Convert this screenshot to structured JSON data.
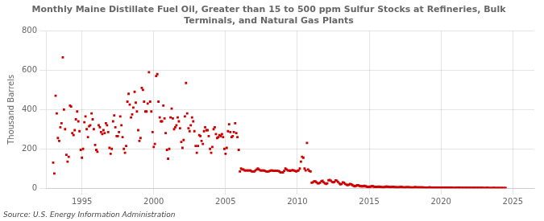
{
  "chart_data": {
    "type": "scatter",
    "title": "Monthly Maine Distillate Fuel Oil, Greater than 15 to 500 ppm Sulfur Stocks at Refineries, Bulk\nTerminals, and Natural Gas Plants",
    "ylabel": "Thousand Barrels",
    "annotations": [
      "Source: U.S. Energy Information Administration"
    ],
    "color": "#cc0000",
    "marker": "square",
    "grid": true,
    "xlim": [
      1992.5,
      2026.5
    ],
    "xticks": [
      1995,
      2000,
      2005,
      2010,
      2015,
      2020,
      2025
    ],
    "ylim": [
      0,
      800
    ],
    "yticks": [
      0,
      200,
      400,
      600,
      800
    ],
    "x": [
      1993.0,
      1993.08,
      1993.17,
      1993.25,
      1993.33,
      1993.42,
      1993.5,
      1993.58,
      1993.67,
      1993.75,
      1993.83,
      1993.92,
      1994.0,
      1994.08,
      1994.17,
      1994.25,
      1994.33,
      1994.42,
      1994.5,
      1994.58,
      1994.67,
      1994.75,
      1994.83,
      1994.92,
      1995.0,
      1995.08,
      1995.17,
      1995.25,
      1995.33,
      1995.42,
      1995.5,
      1995.58,
      1995.67,
      1995.75,
      1995.83,
      1995.92,
      1996.0,
      1996.08,
      1996.17,
      1996.25,
      1996.33,
      1996.42,
      1996.5,
      1996.58,
      1996.67,
      1996.75,
      1996.83,
      1996.92,
      1997.0,
      1997.08,
      1997.17,
      1997.25,
      1997.33,
      1997.42,
      1997.5,
      1997.58,
      1997.67,
      1997.75,
      1997.83,
      1997.92,
      1998.0,
      1998.08,
      1998.17,
      1998.25,
      1998.33,
      1998.42,
      1998.5,
      1998.58,
      1998.67,
      1998.75,
      1998.83,
      1998.92,
      1999.0,
      1999.08,
      1999.17,
      1999.25,
      1999.33,
      1999.42,
      1999.5,
      1999.58,
      1999.67,
      1999.75,
      1999.83,
      1999.92,
      2000.0,
      2000.08,
      2000.17,
      2000.25,
      2000.33,
      2000.42,
      2000.5,
      2000.58,
      2000.67,
      2000.75,
      2000.83,
      2000.92,
      2001.0,
      2001.08,
      2001.17,
      2001.25,
      2001.33,
      2001.42,
      2001.5,
      2001.58,
      2001.67,
      2001.75,
      2001.83,
      2001.92,
      2002.0,
      2002.08,
      2002.17,
      2002.25,
      2002.33,
      2002.42,
      2002.5,
      2002.58,
      2002.67,
      2002.75,
      2002.83,
      2002.92,
      2003.0,
      2003.08,
      2003.17,
      2003.25,
      2003.33,
      2003.42,
      2003.5,
      2003.58,
      2003.67,
      2003.75,
      2003.83,
      2003.92,
      2004.0,
      2004.08,
      2004.17,
      2004.25,
      2004.33,
      2004.42,
      2004.5,
      2004.58,
      2004.67,
      2004.75,
      2004.83,
      2004.92,
      2005.0,
      2005.08,
      2005.17,
      2005.25,
      2005.33,
      2005.42,
      2005.5,
      2005.58,
      2005.67,
      2005.75,
      2005.83,
      2005.92,
      2006.0,
      2006.08,
      2006.17,
      2006.25,
      2006.33,
      2006.42,
      2006.5,
      2006.58,
      2006.67,
      2006.75,
      2006.83,
      2006.92,
      2007.0,
      2007.08,
      2007.17,
      2007.25,
      2007.33,
      2007.42,
      2007.5,
      2007.58,
      2007.67,
      2007.75,
      2007.83,
      2007.92,
      2008.0,
      2008.08,
      2008.17,
      2008.25,
      2008.33,
      2008.42,
      2008.5,
      2008.58,
      2008.67,
      2008.75,
      2008.83,
      2008.92,
      2009.0,
      2009.08,
      2009.17,
      2009.25,
      2009.33,
      2009.42,
      2009.5,
      2009.58,
      2009.67,
      2009.75,
      2009.83,
      2009.92,
      2010.0,
      2010.08,
      2010.17,
      2010.25,
      2010.33,
      2010.42,
      2010.5,
      2010.58,
      2010.67,
      2010.75,
      2010.83,
      2010.92,
      2011.0,
      2011.08,
      2011.17,
      2011.25,
      2011.33,
      2011.42,
      2011.5,
      2011.58,
      2011.67,
      2011.75,
      2011.83,
      2011.92,
      2012.0,
      2012.08,
      2012.17,
      2012.25,
      2012.33,
      2012.42,
      2012.5,
      2012.58,
      2012.67,
      2012.75,
      2012.83,
      2012.92,
      2013.0,
      2013.08,
      2013.17,
      2013.25,
      2013.33,
      2013.42,
      2013.5,
      2013.58,
      2013.67,
      2013.75,
      2013.83,
      2013.92,
      2014.0,
      2014.08,
      2014.17,
      2014.25,
      2014.33,
      2014.42,
      2014.5,
      2014.58,
      2014.67,
      2014.75,
      2014.83,
      2014.92,
      2015.0,
      2015.08,
      2015.17,
      2015.25,
      2015.33,
      2015.42,
      2015.5,
      2015.58,
      2015.67,
      2015.75,
      2015.83,
      2015.92,
      2016.0,
      2016.08,
      2016.17,
      2016.25,
      2016.33,
      2016.42,
      2016.5,
      2016.58,
      2016.67,
      2016.75,
      2016.83,
      2016.92,
      2017.0,
      2017.08,
      2017.17,
      2017.25,
      2017.33,
      2017.42,
      2017.5,
      2017.58,
      2017.67,
      2017.75,
      2017.83,
      2017.92,
      2018.0,
      2018.08,
      2018.17,
      2018.25,
      2018.33,
      2018.42,
      2018.5,
      2018.58,
      2018.67,
      2018.75,
      2018.83,
      2018.92,
      2019.0,
      2019.08,
      2019.17,
      2019.25,
      2019.33,
      2019.42,
      2019.5,
      2019.58,
      2019.67,
      2019.75,
      2019.83,
      2019.92,
      2020.0,
      2020.08,
      2020.17,
      2020.25,
      2020.33,
      2020.42,
      2020.5,
      2020.58,
      2020.67,
      2020.75,
      2020.83,
      2020.92,
      2021.0,
      2021.08,
      2021.17,
      2021.25,
      2021.33,
      2021.42,
      2021.5,
      2021.58,
      2021.67,
      2021.75,
      2021.83,
      2021.92,
      2022.0,
      2022.08,
      2022.17,
      2022.25,
      2022.33,
      2022.42,
      2022.5,
      2022.58,
      2022.67,
      2022.75,
      2022.83,
      2022.92,
      2023.0,
      2023.08,
      2023.17,
      2023.25,
      2023.33,
      2023.42,
      2023.5,
      2023.58,
      2023.67,
      2023.75,
      2023.83,
      2023.92,
      2024.0,
      2024.08,
      2024.17,
      2024.25,
      2024.33,
      2024.42,
      2024.5
    ],
    "values": [
      130,
      75,
      470,
      380,
      255,
      240,
      310,
      330,
      665,
      400,
      300,
      170,
      135,
      160,
      420,
      415,
      280,
      270,
      295,
      350,
      390,
      340,
      290,
      195,
      155,
      200,
      335,
      365,
      300,
      260,
      315,
      320,
      380,
      350,
      300,
      220,
      195,
      185,
      320,
      310,
      285,
      275,
      295,
      280,
      330,
      320,
      285,
      205,
      175,
      200,
      340,
      370,
      310,
      265,
      265,
      285,
      365,
      320,
      260,
      200,
      180,
      215,
      440,
      480,
      425,
      360,
      375,
      410,
      490,
      435,
      390,
      295,
      240,
      255,
      510,
      500,
      440,
      390,
      390,
      430,
      590,
      440,
      390,
      285,
      210,
      225,
      570,
      580,
      440,
      360,
      340,
      340,
      420,
      355,
      280,
      195,
      150,
      200,
      360,
      405,
      355,
      300,
      310,
      320,
      360,
      340,
      305,
      235,
      205,
      245,
      365,
      535,
      380,
      305,
      290,
      320,
      360,
      340,
      290,
      215,
      180,
      215,
      270,
      265,
      240,
      225,
      290,
      310,
      295,
      295,
      265,
      200,
      180,
      210,
      300,
      310,
      275,
      255,
      260,
      270,
      265,
      275,
      260,
      200,
      175,
      205,
      290,
      325,
      285,
      260,
      265,
      285,
      330,
      280,
      260,
      195,
      85,
      100,
      95,
      95,
      90,
      90,
      90,
      90,
      90,
      90,
      85,
      85,
      85,
      90,
      95,
      100,
      95,
      90,
      90,
      90,
      90,
      88,
      85,
      85,
      85,
      88,
      90,
      90,
      88,
      88,
      88,
      88,
      88,
      85,
      80,
      80,
      80,
      88,
      100,
      95,
      90,
      90,
      88,
      90,
      92,
      90,
      88,
      85,
      88,
      90,
      100,
      135,
      160,
      155,
      100,
      90,
      230,
      95,
      88,
      85,
      28,
      30,
      35,
      35,
      30,
      25,
      25,
      28,
      35,
      38,
      30,
      25,
      22,
      25,
      40,
      42,
      38,
      32,
      30,
      32,
      40,
      38,
      32,
      25,
      20,
      22,
      30,
      28,
      22,
      18,
      16,
      18,
      22,
      20,
      16,
      12,
      10,
      12,
      15,
      14,
      12,
      10,
      10,
      10,
      12,
      10,
      8,
      7,
      6,
      8,
      10,
      10,
      8,
      7,
      7,
      7,
      8,
      7,
      6,
      5,
      5,
      6,
      8,
      8,
      7,
      6,
      6,
      6,
      7,
      6,
      5,
      5,
      4,
      5,
      6,
      6,
      5,
      4,
      4,
      5,
      5,
      5,
      4,
      4,
      3,
      4,
      5,
      5,
      4,
      4,
      4,
      4,
      4,
      4,
      3,
      3,
      3,
      3,
      4,
      4,
      3,
      3,
      3,
      3,
      3,
      3,
      3,
      3,
      2,
      3,
      3,
      3,
      3,
      3,
      3,
      3,
      3,
      3,
      2,
      2,
      2,
      2,
      3,
      3,
      2,
      2,
      2,
      2,
      2,
      2,
      2,
      2,
      2,
      2,
      2,
      2,
      2,
      2,
      2,
      2,
      2,
      2,
      2,
      2,
      1,
      1,
      2,
      2,
      1,
      1,
      1,
      1,
      2,
      1,
      1,
      1,
      1,
      1,
      1,
      1,
      1,
      1,
      1
    ]
  }
}
